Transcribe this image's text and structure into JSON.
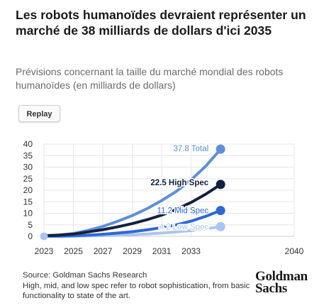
{
  "title": "Les robots humanoïdes devraient représenter un marché de 38 milliards de dollars d'ici 2035",
  "subtitle": "Prévisions concernant la taille du marché mondial des robots humanoïdes (en milliards de dollars)",
  "replay_label": "Replay",
  "source_line": "Source: Goldman Sachs Research",
  "note_line": "High, mid, and low spec refer to robot sophistication, from basic functionality to state of the art.",
  "logo_lines": [
    "Goldman",
    "Sachs"
  ],
  "chart_data": {
    "type": "line",
    "title": "",
    "xlabel": "",
    "ylabel": "",
    "xlim": [
      2023,
      2040
    ],
    "ylim": [
      0,
      40
    ],
    "x_ticks": [
      2023,
      2025,
      2027,
      2029,
      2031,
      2033,
      2040
    ],
    "y_ticks": [
      0,
      5,
      10,
      15,
      20,
      25,
      30,
      35,
      40
    ],
    "grid": true,
    "x": [
      2023,
      2024,
      2025,
      2026,
      2027,
      2028,
      2029,
      2030,
      2031,
      2032,
      2033,
      2034,
      2035
    ],
    "series": [
      {
        "name": "Total",
        "value_label": "37.8 Total",
        "color": "#5b8fdb",
        "values": [
          0.3,
          0.6,
          1.2,
          2.6,
          4.3,
          6.5,
          9.0,
          12.0,
          15.5,
          19.5,
          24.5,
          30.5,
          37.8
        ]
      },
      {
        "name": "High Spec",
        "value_label": "22.5 High Spec",
        "color": "#14213d",
        "values": [
          0.2,
          0.5,
          1.0,
          1.9,
          2.9,
          4.1,
          5.5,
          7.2,
          9.2,
          11.7,
          14.7,
          18.3,
          22.5
        ]
      },
      {
        "name": "Mid Spec",
        "value_label": "11.2 Mid Spec",
        "color": "#2d68d8",
        "values": [
          0.1,
          0.1,
          0.2,
          0.5,
          0.9,
          1.4,
          2.0,
          2.8,
          3.8,
          5.0,
          6.6,
          8.7,
          11.2
        ]
      },
      {
        "name": "Low Spec",
        "value_label": "4.2 Low Spec",
        "color": "#a9c6ef",
        "values": [
          0.0,
          0.0,
          0.1,
          0.2,
          0.3,
          0.5,
          0.7,
          1.0,
          1.4,
          1.9,
          2.5,
          3.3,
          4.2
        ]
      }
    ]
  }
}
